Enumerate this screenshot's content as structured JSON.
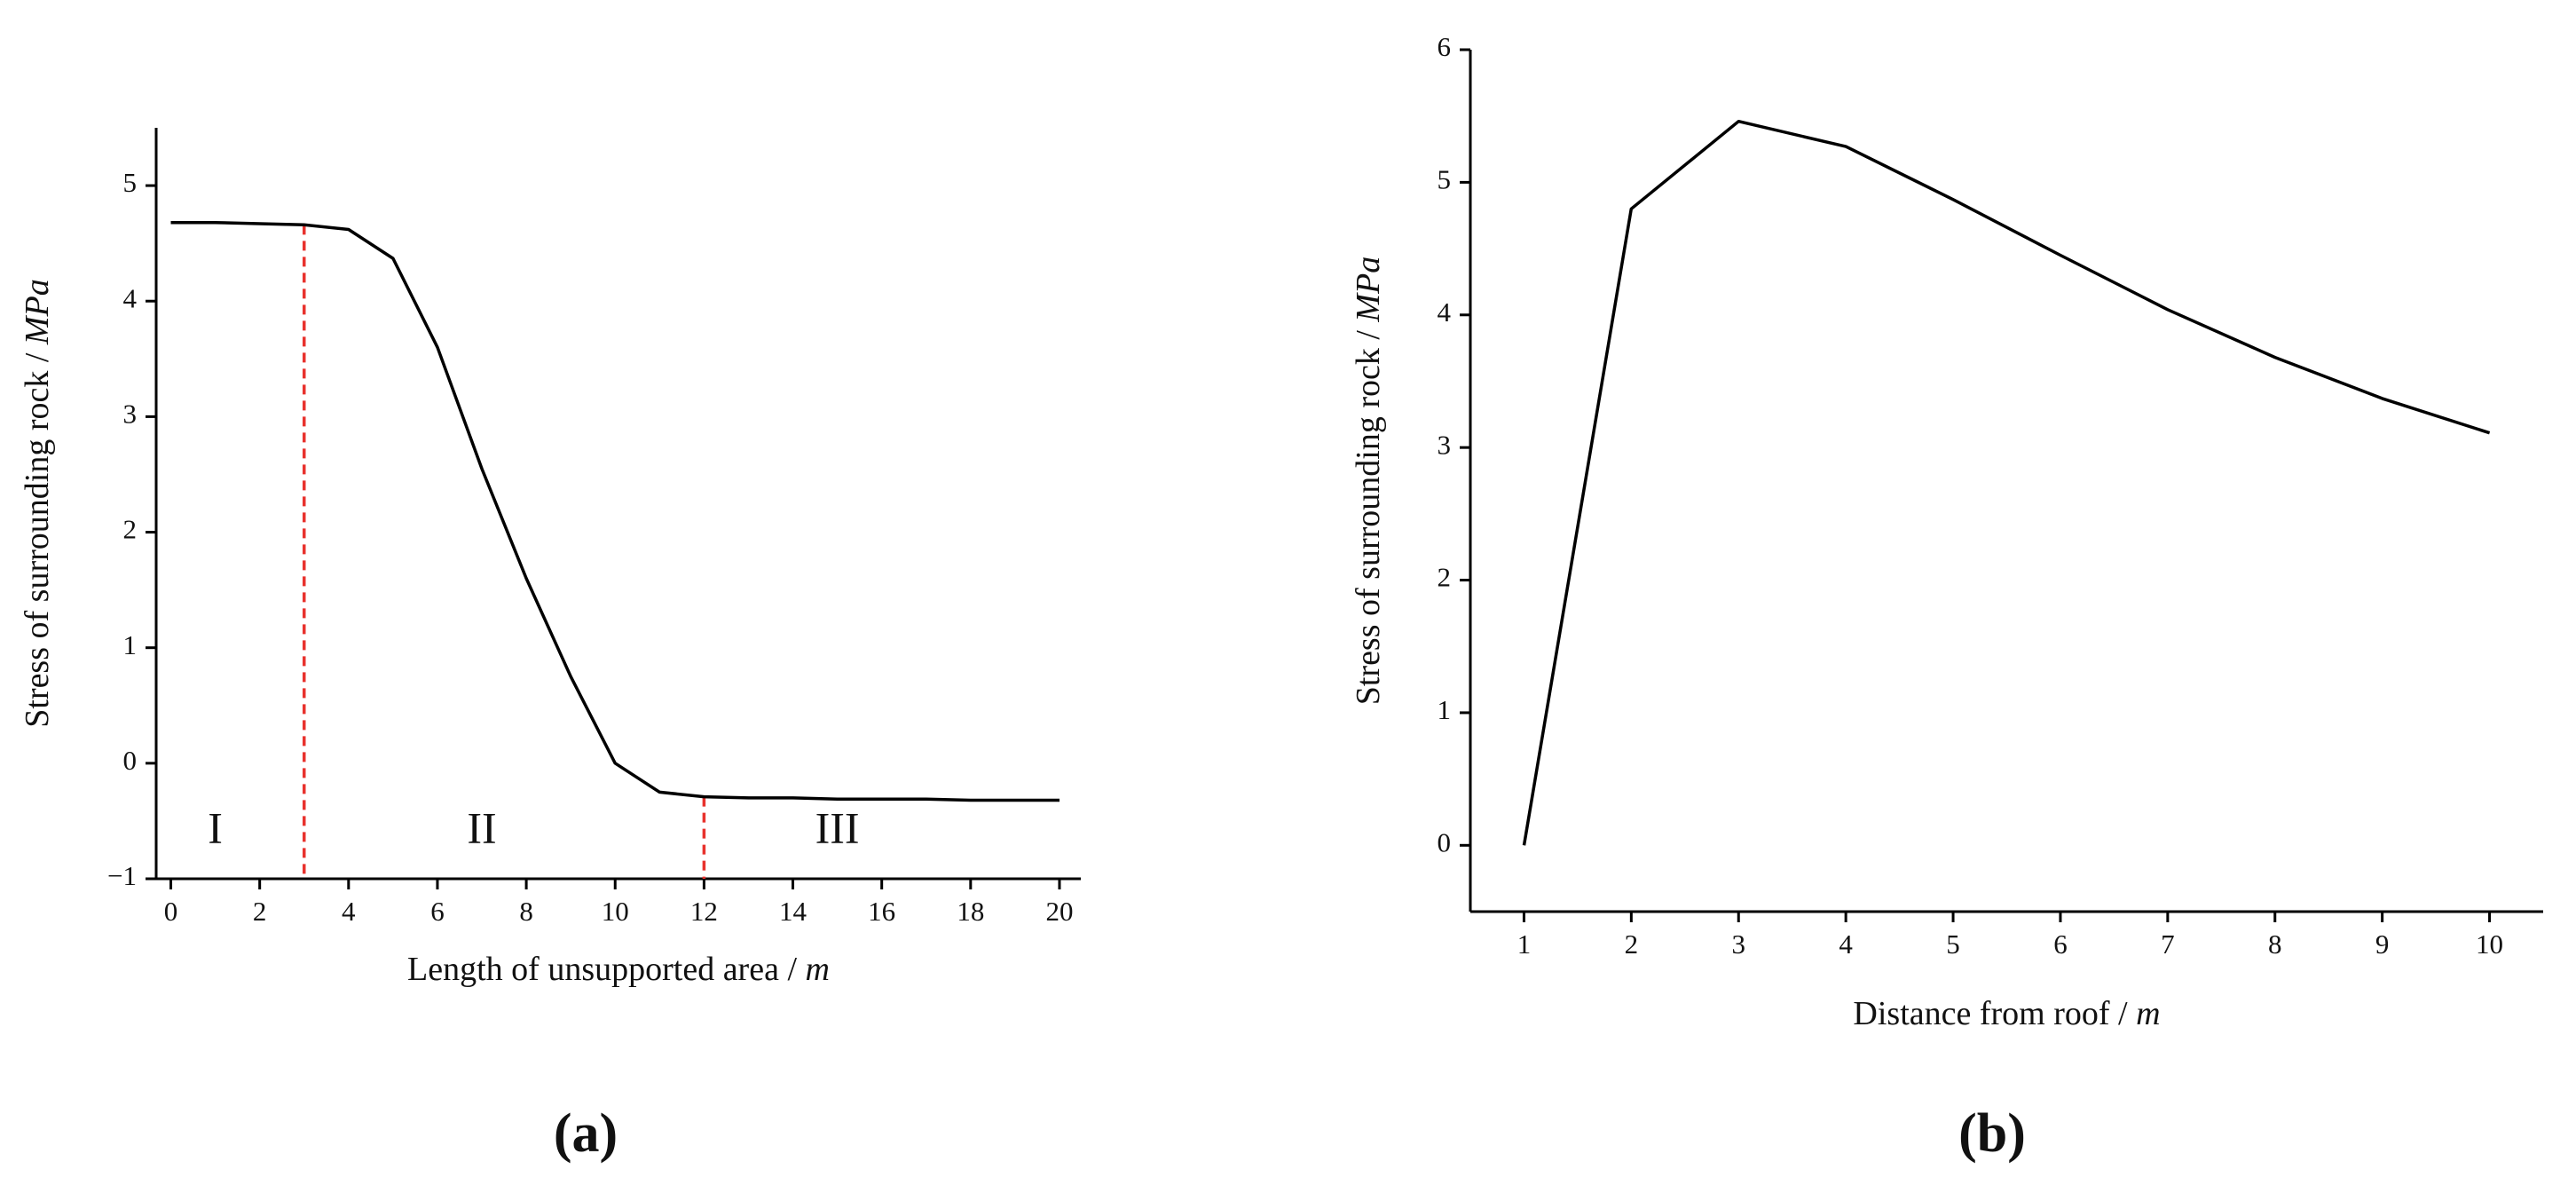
{
  "chart_data": [
    {
      "type": "line",
      "panel_label": "(a)",
      "xlabel": "Length of unsupported area / ",
      "xlabel_unit": "m",
      "ylabel": "Stress of surrounding rock / ",
      "ylabel_unit": "MPa",
      "x": [
        0,
        1,
        2,
        3,
        4,
        5,
        6,
        7,
        8,
        9,
        10,
        11,
        12,
        13,
        14,
        15,
        16,
        17,
        18,
        19,
        20
      ],
      "series": [
        {
          "color": "#000000",
          "values": [
            4.68,
            4.68,
            4.67,
            4.66,
            4.62,
            4.37,
            3.6,
            2.55,
            1.6,
            0.75,
            0.0,
            -0.25,
            -0.29,
            -0.3,
            -0.3,
            -0.31,
            -0.31,
            -0.31,
            -0.32,
            -0.32,
            -0.32
          ]
        }
      ],
      "xlim": [
        -0.33,
        20.48
      ],
      "ylim": [
        -1,
        5.5
      ],
      "xticks": [
        0,
        2,
        4,
        6,
        8,
        10,
        12,
        14,
        16,
        18,
        20
      ],
      "yticks": [
        {
          "value": -1,
          "label": "−1"
        },
        0,
        1,
        2,
        3,
        4,
        5
      ],
      "vlines": [
        3,
        12
      ],
      "vline_color": "#e8322d",
      "annotations": [
        "I",
        "II",
        "III"
      ]
    },
    {
      "type": "line",
      "panel_label": "(b)",
      "xlabel": "Distance from roof / ",
      "xlabel_unit": "m",
      "ylabel": "Stress of surrounding rock / ",
      "ylabel_unit": "MPa",
      "x": [
        1,
        2,
        3,
        4,
        5,
        6,
        7,
        8,
        9,
        10
      ],
      "series": [
        {
          "color": "#000000",
          "values": [
            0,
            4.8,
            5.46,
            5.27,
            4.87,
            4.45,
            4.04,
            3.68,
            3.37,
            3.11
          ]
        }
      ],
      "xlim": [
        0.5,
        10.5
      ],
      "ylim": [
        -0.5,
        6
      ],
      "xticks": [
        1,
        2,
        3,
        4,
        5,
        6,
        7,
        8,
        9,
        10
      ],
      "yticks": [
        0,
        1,
        2,
        3,
        4,
        5,
        6
      ]
    }
  ]
}
